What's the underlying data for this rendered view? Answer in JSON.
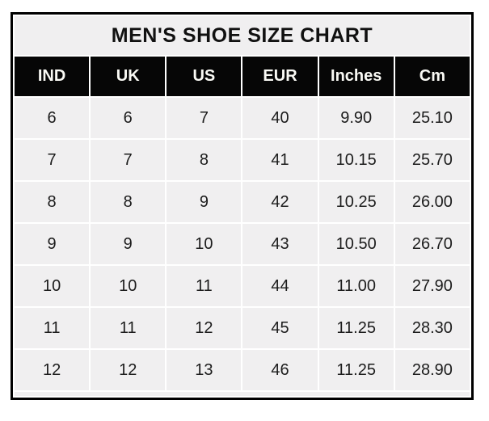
{
  "chart_data": {
    "type": "table",
    "title": "MEN'S SHOE SIZE CHART",
    "columns": [
      "IND",
      "UK",
      "US",
      "EUR",
      "Inches",
      "Cm"
    ],
    "rows": [
      [
        "6",
        "6",
        "7",
        "40",
        "9.90",
        "25.10"
      ],
      [
        "7",
        "7",
        "8",
        "41",
        "10.15",
        "25.70"
      ],
      [
        "8",
        "8",
        "9",
        "42",
        "10.25",
        "26.00"
      ],
      [
        "9",
        "9",
        "10",
        "43",
        "10.50",
        "26.70"
      ],
      [
        "10",
        "10",
        "11",
        "44",
        "11.00",
        "27.90"
      ],
      [
        "11",
        "11",
        "12",
        "45",
        "11.25",
        "28.30"
      ],
      [
        "12",
        "12",
        "13",
        "46",
        "11.25",
        "28.90"
      ]
    ],
    "layout": {
      "grid": "white 2px gridlines between cells",
      "outer_border": "3px solid black",
      "title_position": "top, spanning all columns"
    }
  },
  "colors": {
    "page_bg": "#ffffff",
    "title_bg": "#f0eff0",
    "title_text": "#111111",
    "header_bg": "#060606",
    "header_text": "#fafaf5",
    "cell_bg": "#f0eff0",
    "cell_text": "#1c1c1c",
    "gridline": "#ffffff",
    "border": "#000000"
  }
}
